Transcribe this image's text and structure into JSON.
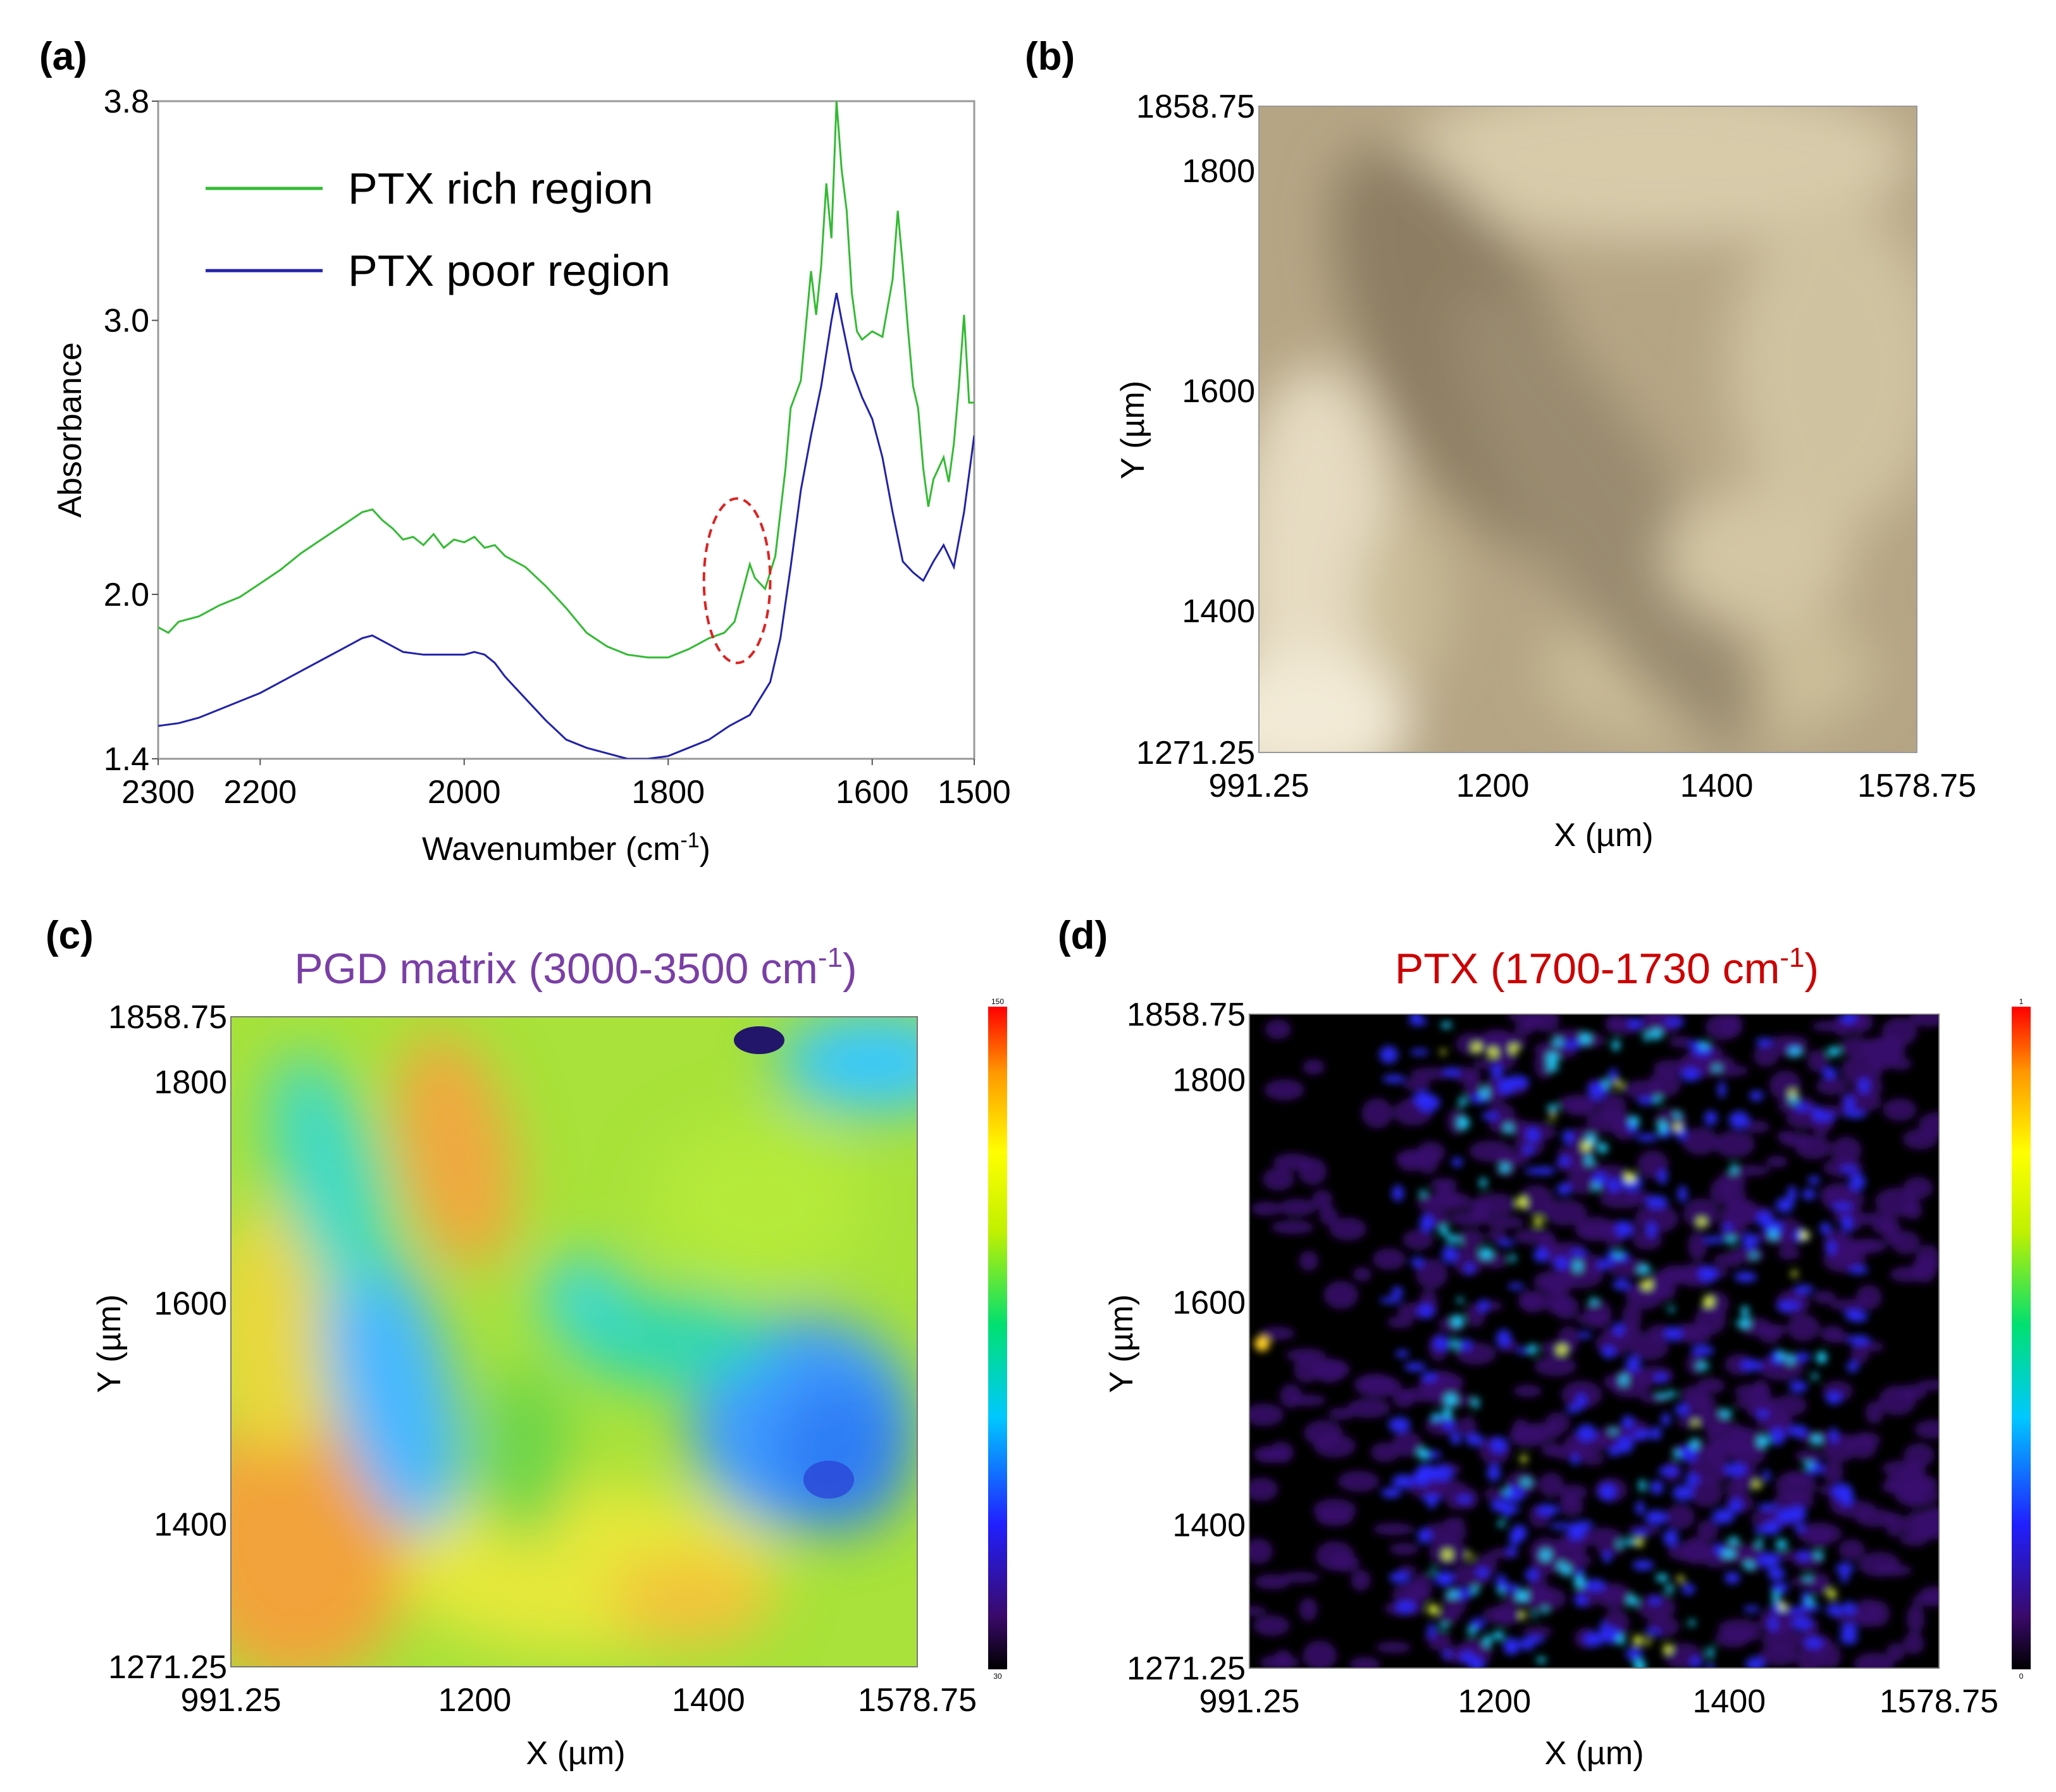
{
  "chart_data": [
    {
      "panel": "(a)",
      "type": "line",
      "xlabel": "Wavenumber (cm-1)",
      "xlabel_parts": {
        "base": "Wavenumber (cm",
        "sup": "-1",
        "end": ")"
      },
      "ylabel": "Absorbance",
      "xlim": [
        2300,
        1500
      ],
      "ylim": [
        1.4,
        3.8
      ],
      "xticks": [
        "2300",
        "2200",
        "2000",
        "1800",
        "1600",
        "1500"
      ],
      "xtick_values": [
        2300,
        2200,
        2000,
        1800,
        1600,
        1500
      ],
      "yticks": [
        "3.8",
        "3.0",
        "2.0",
        "1.4"
      ],
      "ytick_values": [
        3.8,
        3.0,
        2.0,
        1.4
      ],
      "legend": "top-left",
      "highlight": {
        "shape": "dashed-ellipse",
        "color": "#dd2222",
        "x_range": [
          1765,
          1700
        ],
        "y_range": [
          1.75,
          2.35
        ]
      },
      "series": [
        {
          "name": "PTX rich region",
          "color": "#33bb33",
          "points": [
            [
              2300,
              1.88
            ],
            [
              2290,
              1.86
            ],
            [
              2280,
              1.9
            ],
            [
              2260,
              1.92
            ],
            [
              2240,
              1.96
            ],
            [
              2220,
              1.99
            ],
            [
              2200,
              2.04
            ],
            [
              2180,
              2.09
            ],
            [
              2160,
              2.15
            ],
            [
              2140,
              2.2
            ],
            [
              2120,
              2.25
            ],
            [
              2100,
              2.3
            ],
            [
              2090,
              2.31
            ],
            [
              2080,
              2.27
            ],
            [
              2070,
              2.24
            ],
            [
              2060,
              2.2
            ],
            [
              2050,
              2.21
            ],
            [
              2040,
              2.18
            ],
            [
              2030,
              2.22
            ],
            [
              2020,
              2.17
            ],
            [
              2010,
              2.2
            ],
            [
              2000,
              2.19
            ],
            [
              1990,
              2.21
            ],
            [
              1980,
              2.17
            ],
            [
              1970,
              2.18
            ],
            [
              1960,
              2.14
            ],
            [
              1940,
              2.1
            ],
            [
              1920,
              2.03
            ],
            [
              1900,
              1.95
            ],
            [
              1880,
              1.86
            ],
            [
              1860,
              1.81
            ],
            [
              1840,
              1.78
            ],
            [
              1820,
              1.77
            ],
            [
              1800,
              1.77
            ],
            [
              1780,
              1.8
            ],
            [
              1760,
              1.84
            ],
            [
              1745,
              1.86
            ],
            [
              1735,
              1.9
            ],
            [
              1725,
              2.04
            ],
            [
              1720,
              2.11
            ],
            [
              1715,
              2.06
            ],
            [
              1705,
              2.02
            ],
            [
              1695,
              2.14
            ],
            [
              1685,
              2.46
            ],
            [
              1680,
              2.68
            ],
            [
              1670,
              2.78
            ],
            [
              1660,
              3.18
            ],
            [
              1655,
              3.02
            ],
            [
              1650,
              3.2
            ],
            [
              1645,
              3.5
            ],
            [
              1640,
              3.3
            ],
            [
              1635,
              3.8
            ],
            [
              1630,
              3.55
            ],
            [
              1625,
              3.4
            ],
            [
              1620,
              3.1
            ],
            [
              1615,
              2.96
            ],
            [
              1610,
              2.93
            ],
            [
              1600,
              2.96
            ],
            [
              1590,
              2.94
            ],
            [
              1580,
              3.15
            ],
            [
              1575,
              3.4
            ],
            [
              1570,
              3.2
            ],
            [
              1565,
              2.97
            ],
            [
              1560,
              2.76
            ],
            [
              1555,
              2.68
            ],
            [
              1550,
              2.46
            ],
            [
              1545,
              2.32
            ],
            [
              1540,
              2.42
            ],
            [
              1530,
              2.5
            ],
            [
              1525,
              2.41
            ],
            [
              1520,
              2.55
            ],
            [
              1515,
              2.76
            ],
            [
              1510,
              3.02
            ],
            [
              1505,
              2.7
            ],
            [
              1500,
              2.7
            ]
          ]
        },
        {
          "name": "PTX poor region",
          "color": "#2222aa",
          "points": [
            [
              2300,
              1.52
            ],
            [
              2280,
              1.53
            ],
            [
              2260,
              1.55
            ],
            [
              2240,
              1.58
            ],
            [
              2220,
              1.61
            ],
            [
              2200,
              1.64
            ],
            [
              2180,
              1.68
            ],
            [
              2160,
              1.72
            ],
            [
              2140,
              1.76
            ],
            [
              2120,
              1.8
            ],
            [
              2100,
              1.84
            ],
            [
              2090,
              1.85
            ],
            [
              2080,
              1.83
            ],
            [
              2070,
              1.81
            ],
            [
              2060,
              1.79
            ],
            [
              2040,
              1.78
            ],
            [
              2020,
              1.78
            ],
            [
              2000,
              1.78
            ],
            [
              1990,
              1.79
            ],
            [
              1980,
              1.78
            ],
            [
              1970,
              1.75
            ],
            [
              1960,
              1.7
            ],
            [
              1940,
              1.62
            ],
            [
              1920,
              1.54
            ],
            [
              1900,
              1.47
            ],
            [
              1880,
              1.44
            ],
            [
              1860,
              1.42
            ],
            [
              1840,
              1.4
            ],
            [
              1820,
              1.4
            ],
            [
              1800,
              1.41
            ],
            [
              1780,
              1.44
            ],
            [
              1760,
              1.47
            ],
            [
              1740,
              1.52
            ],
            [
              1720,
              1.56
            ],
            [
              1700,
              1.68
            ],
            [
              1690,
              1.84
            ],
            [
              1680,
              2.1
            ],
            [
              1670,
              2.38
            ],
            [
              1660,
              2.58
            ],
            [
              1650,
              2.76
            ],
            [
              1640,
              3.0
            ],
            [
              1635,
              3.1
            ],
            [
              1630,
              3.0
            ],
            [
              1620,
              2.82
            ],
            [
              1610,
              2.72
            ],
            [
              1600,
              2.64
            ],
            [
              1590,
              2.5
            ],
            [
              1580,
              2.3
            ],
            [
              1570,
              2.12
            ],
            [
              1560,
              2.08
            ],
            [
              1550,
              2.05
            ],
            [
              1540,
              2.12
            ],
            [
              1530,
              2.18
            ],
            [
              1520,
              2.1
            ],
            [
              1510,
              2.3
            ],
            [
              1500,
              2.58
            ]
          ]
        }
      ]
    },
    {
      "panel": "(b)",
      "type": "image",
      "xlabel": "X (µm)",
      "ylabel": "Y (µm)",
      "xlim": [
        991.25,
        1578.75
      ],
      "ylim": [
        1271.25,
        1858.75
      ],
      "xticks": [
        "991.25",
        "1200",
        "1400",
        "1578.75"
      ],
      "xtick_values": [
        991.25,
        1200,
        1400,
        1578.75
      ],
      "yticks": [
        "1858.75",
        "1800",
        "1600",
        "1400",
        "1271.25"
      ],
      "ytick_values": [
        1858.75,
        1800,
        1600,
        1400,
        1271.25
      ]
    },
    {
      "panel": "(c)",
      "type": "heatmap",
      "title": "PGD matrix (3000-3500 cm-1)",
      "title_parts": {
        "base": "PGD matrix (3000-3500 cm",
        "sup": "-1",
        "end": ")"
      },
      "title_color": "#7a3fa6",
      "xlabel": "X (µm)",
      "ylabel": "Y (µm)",
      "xlim": [
        991.25,
        1578.75
      ],
      "ylim": [
        1271.25,
        1858.75
      ],
      "xticks": [
        "991.25",
        "1200",
        "1400",
        "1578.75"
      ],
      "xtick_values": [
        991.25,
        1200,
        1400,
        1578.75
      ],
      "yticks": [
        "1858.75",
        "1800",
        "1600",
        "1400",
        "1271.25"
      ],
      "ytick_values": [
        1858.75,
        1800,
        1600,
        1400,
        1271.25
      ],
      "colorbar": {
        "max_label": "150",
        "min_label": "30"
      }
    },
    {
      "panel": "(d)",
      "type": "heatmap",
      "title": "PTX (1700-1730 cm-1)",
      "title_parts": {
        "base": "PTX (1700-1730 cm",
        "sup": "-1",
        "end": ")"
      },
      "title_color": "#cc0000",
      "xlabel": "X (µm)",
      "ylabel": "Y (µm)",
      "xlim": [
        991.25,
        1578.75
      ],
      "ylim": [
        1271.25,
        1858.75
      ],
      "xticks": [
        "991.25",
        "1200",
        "1400",
        "1578.75"
      ],
      "xtick_values": [
        991.25,
        1200,
        1400,
        1578.75
      ],
      "yticks": [
        "1858.75",
        "1800",
        "1600",
        "1400",
        "1271.25"
      ],
      "ytick_values": [
        1858.75,
        1800,
        1600,
        1400,
        1271.25
      ],
      "colorbar": {
        "max_label": "1",
        "min_label": "0"
      }
    }
  ],
  "colors": {
    "axis": "#999999",
    "colorbar_stops": [
      "#000000",
      "#3a0a6a",
      "#2020ff",
      "#00c8ff",
      "#00e070",
      "#c0f000",
      "#ffff00",
      "#ff9900",
      "#ff0000"
    ]
  }
}
